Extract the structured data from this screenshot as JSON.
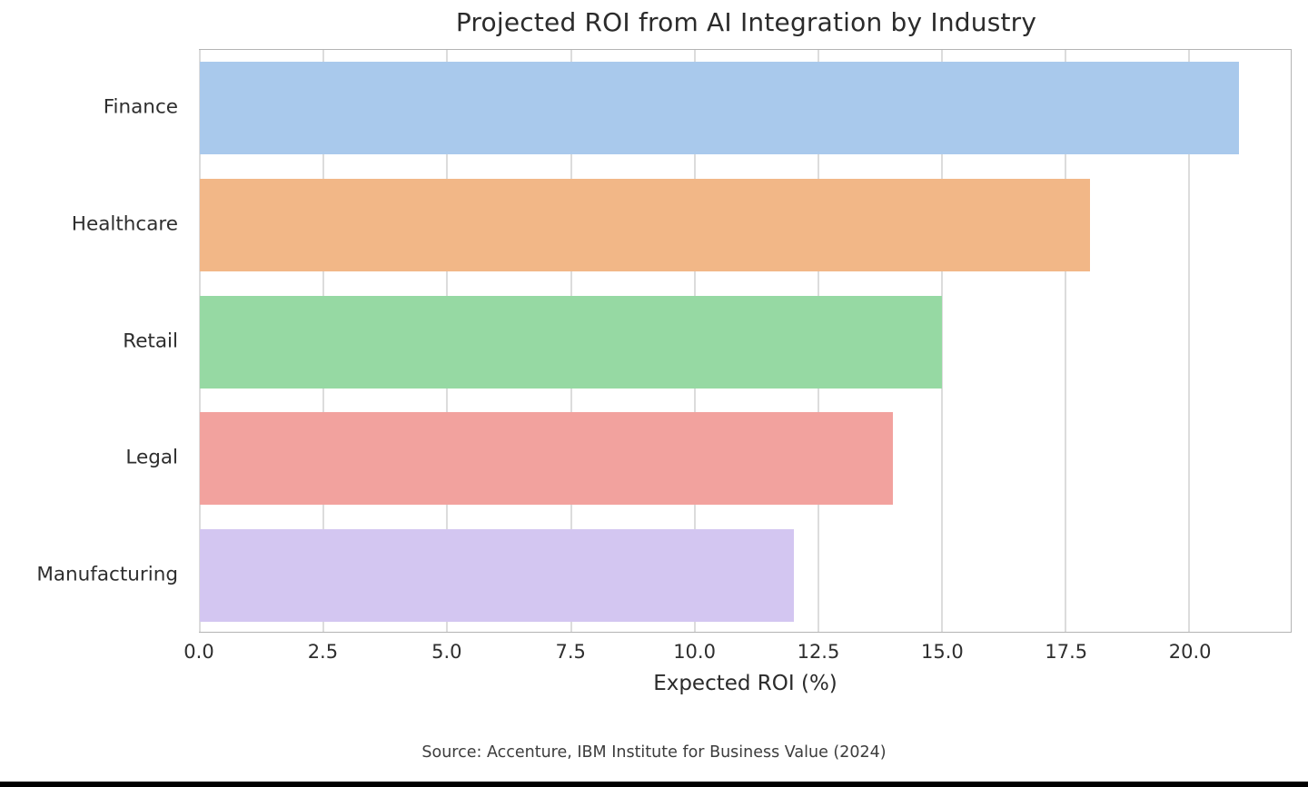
{
  "chart_data": {
    "type": "bar",
    "orientation": "horizontal",
    "title": "Projected ROI from AI Integration by Industry",
    "categories": [
      "Finance",
      "Healthcare",
      "Retail",
      "Legal",
      "Manufacturing"
    ],
    "values": [
      21,
      18,
      15,
      14,
      12
    ],
    "bar_colors": [
      "#a9c9ec",
      "#f2b787",
      "#96d9a3",
      "#f2a29e",
      "#d3c6f1"
    ],
    "xlabel": "Expected ROI (%)",
    "ylabel": "",
    "xlim": [
      0,
      22.05
    ],
    "xticks": [
      0.0,
      2.5,
      5.0,
      7.5,
      10.0,
      12.5,
      15.0,
      17.5,
      20.0
    ],
    "xtick_labels": [
      "0.0",
      "2.5",
      "5.0",
      "7.5",
      "10.0",
      "12.5",
      "15.0",
      "17.5",
      "20.0"
    ],
    "grid": "vertical",
    "grid_color": "#dcdcdc",
    "spine_color": "#b4b4b4",
    "legend": "none",
    "bar_fraction": 0.8
  },
  "footer": {
    "source": "Source: Accenture, IBM Institute for Business Value (2024)"
  }
}
